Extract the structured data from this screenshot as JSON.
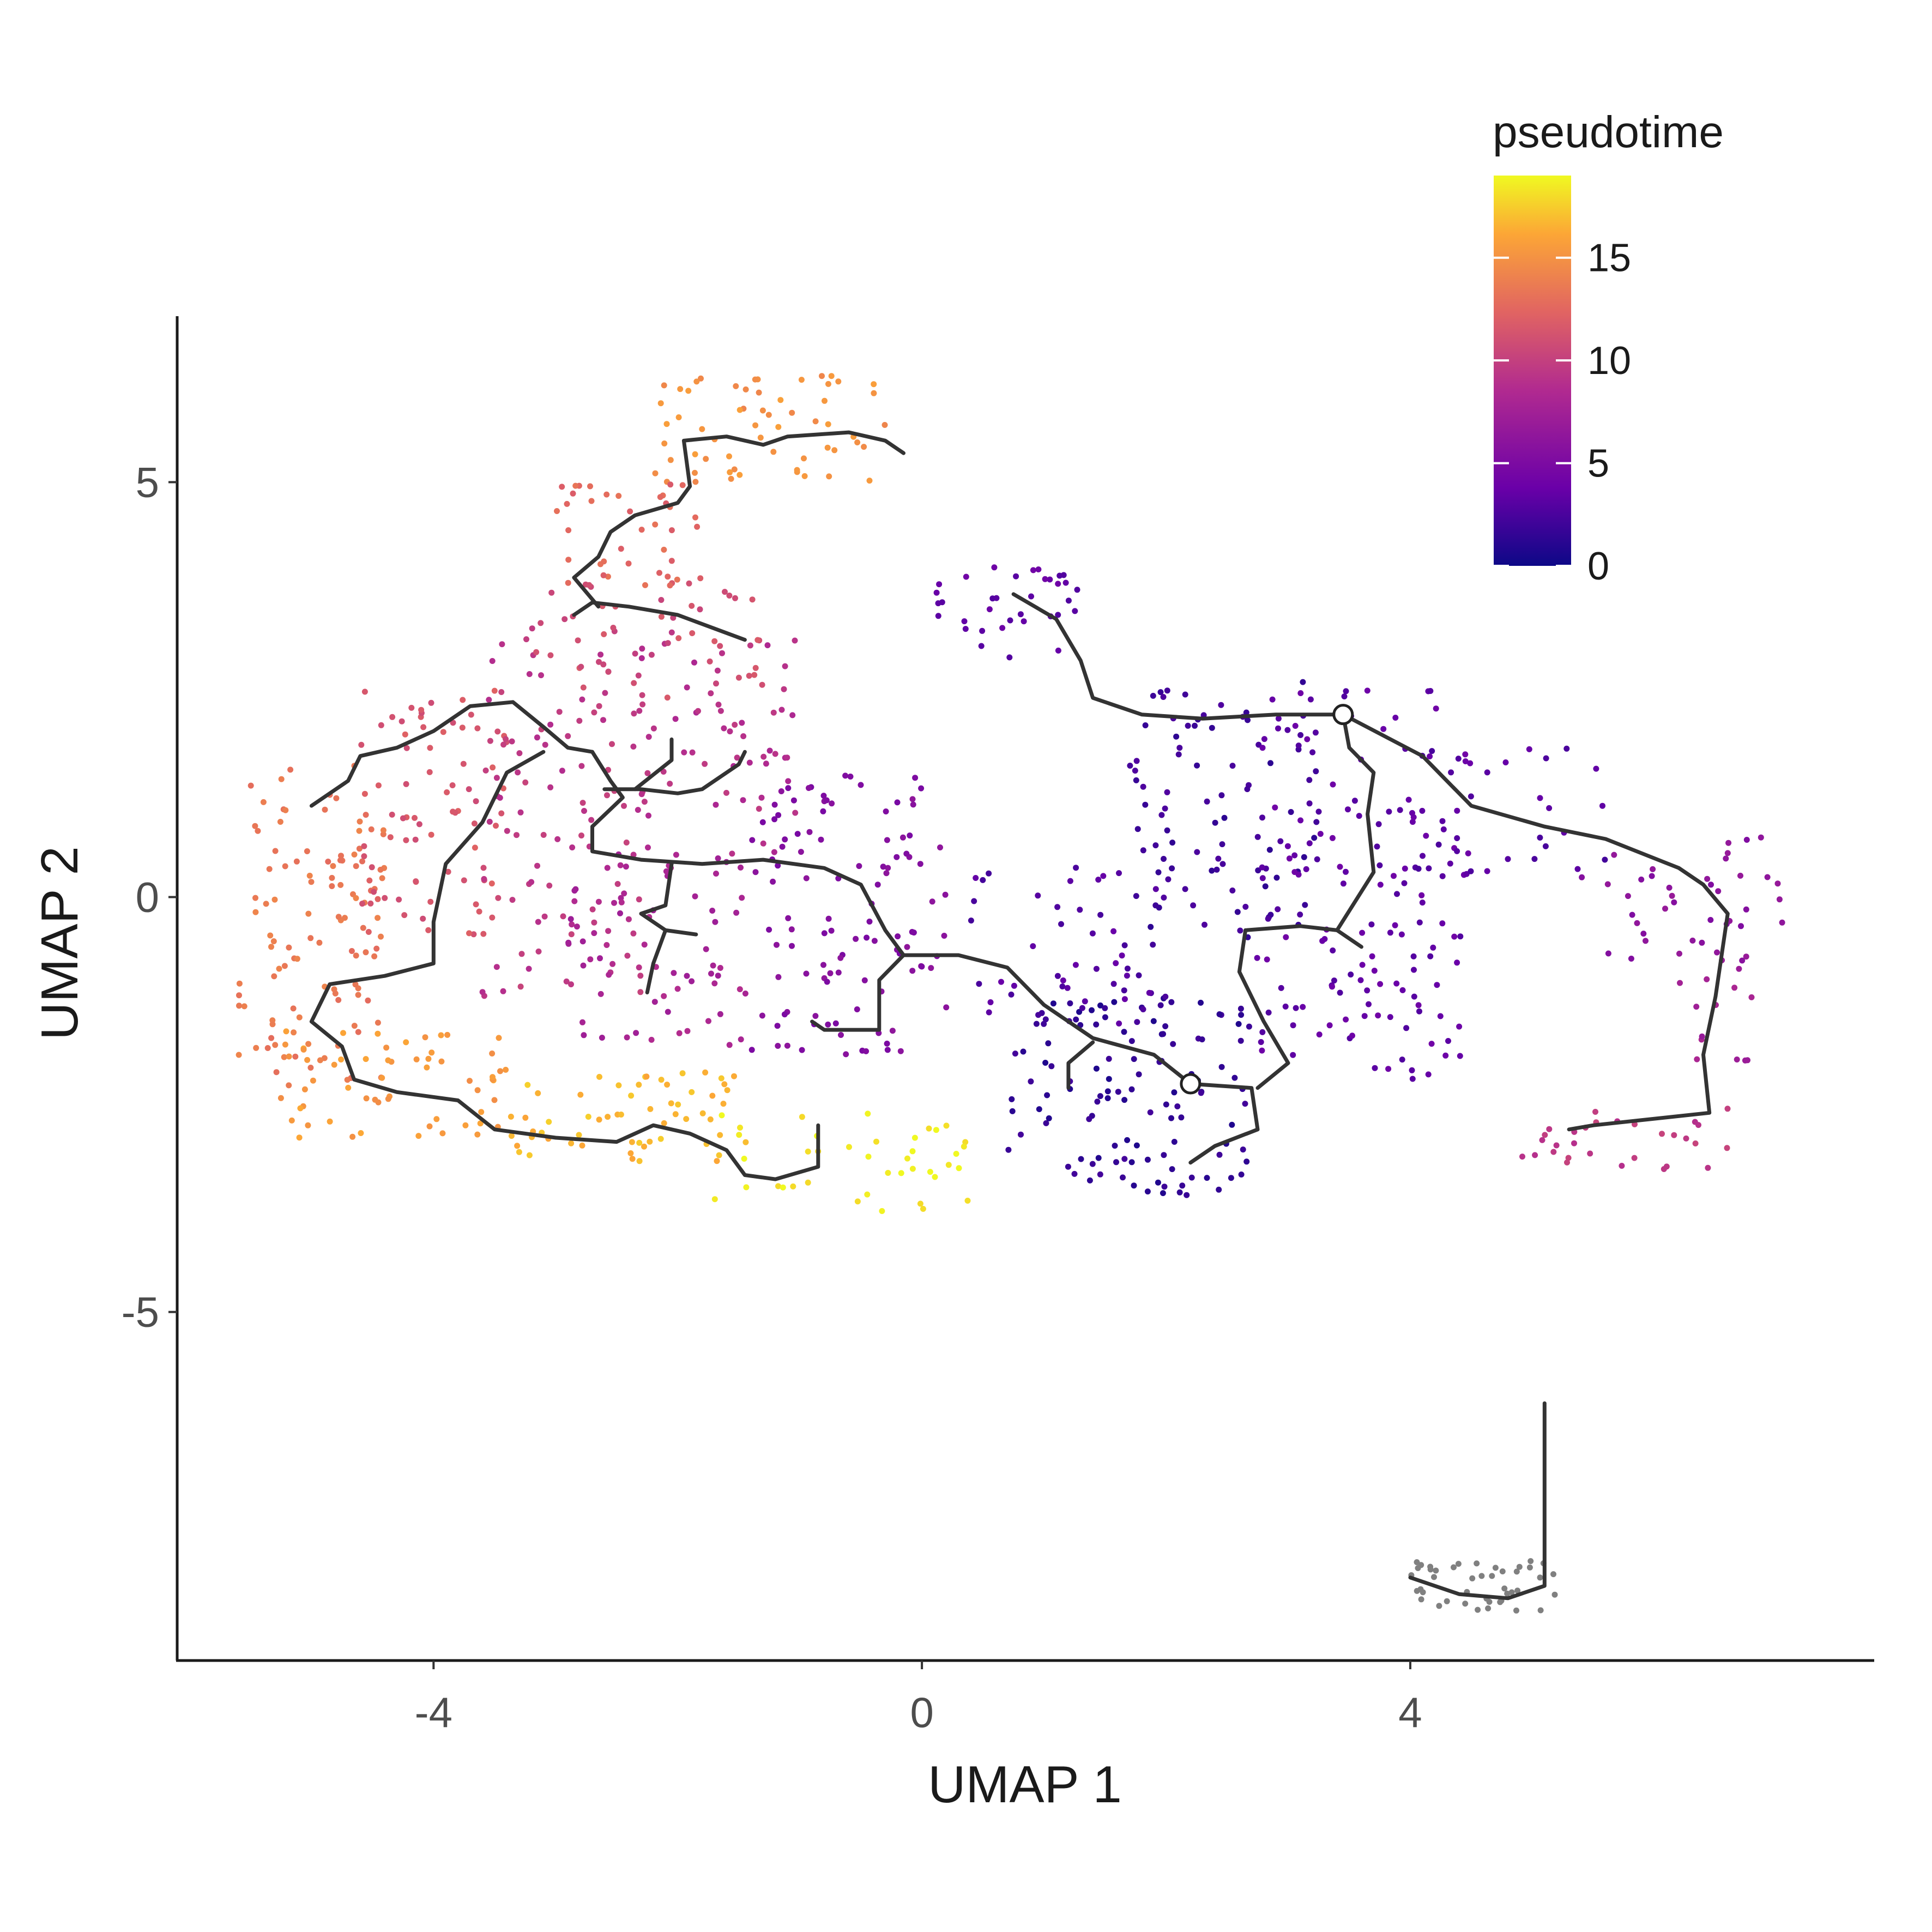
{
  "chart_data": {
    "type": "scatter",
    "xlabel": "UMAP 1",
    "ylabel": "UMAP 2",
    "xlim": [
      -6.1,
      7.8
    ],
    "ylim": [
      -9.2,
      7.0
    ],
    "xticks": [
      -4,
      0,
      4
    ],
    "xtick_labels": [
      "-4",
      "0",
      "4"
    ],
    "yticks": [
      5,
      0,
      -5
    ],
    "ytick_labels": [
      "5",
      "0",
      "-5"
    ],
    "grid": false,
    "legend": {
      "title": "pseudotime",
      "placement": "top-right",
      "type": "colorbar",
      "range": [
        0,
        19
      ],
      "ticks": [
        0,
        5,
        10,
        15
      ],
      "tick_labels": [
        "0",
        "5",
        "10",
        "15"
      ],
      "colors": [
        "#0d0887",
        "#6a00a8",
        "#b12a90",
        "#e16462",
        "#fca636",
        "#f0f921"
      ]
    },
    "na_color": "#808080",
    "root_nodes": [
      {
        "x": 3.45,
        "y": 2.2
      },
      {
        "x": 2.2,
        "y": -2.25
      }
    ],
    "trajectory": [
      [
        [
          -5.0,
          1.1
        ],
        [
          -4.7,
          1.4
        ],
        [
          -4.6,
          1.7
        ],
        [
          -4.3,
          1.8
        ],
        [
          -4.0,
          2.0
        ],
        [
          -3.7,
          2.3
        ],
        [
          -3.35,
          2.35
        ],
        [
          -3.1,
          2.05
        ],
        [
          -2.9,
          1.8
        ],
        [
          -2.7,
          1.75
        ]
      ],
      [
        [
          -3.1,
          1.75
        ],
        [
          -3.4,
          1.5
        ],
        [
          -3.6,
          0.9
        ],
        [
          -3.9,
          0.4
        ],
        [
          -4.0,
          -0.3
        ],
        [
          -4.0,
          -0.8
        ],
        [
          -4.4,
          -0.95
        ],
        [
          -4.85,
          -1.05
        ],
        [
          -5.0,
          -1.5
        ],
        [
          -4.75,
          -1.8
        ],
        [
          -4.65,
          -2.2
        ],
        [
          -4.3,
          -2.35
        ],
        [
          -3.8,
          -2.45
        ],
        [
          -3.5,
          -2.8
        ],
        [
          -3.0,
          -2.9
        ],
        [
          -2.5,
          -2.95
        ],
        [
          -2.2,
          -2.75
        ],
        [
          -1.9,
          -2.85
        ],
        [
          -1.6,
          -3.05
        ],
        [
          -1.45,
          -3.35
        ],
        [
          -1.2,
          -3.4
        ],
        [
          -0.85,
          -3.25
        ],
        [
          -0.85,
          -2.75
        ]
      ],
      [
        [
          -2.7,
          1.75
        ],
        [
          -2.55,
          1.4
        ],
        [
          -2.45,
          1.2
        ],
        [
          -2.7,
          0.85
        ],
        [
          -2.7,
          0.55
        ],
        [
          -2.3,
          0.45
        ],
        [
          -1.8,
          0.4
        ],
        [
          -1.3,
          0.45
        ],
        [
          -0.8,
          0.35
        ],
        [
          -0.5,
          0.15
        ],
        [
          -0.3,
          -0.4
        ],
        [
          -0.15,
          -0.7
        ],
        [
          0.3,
          -0.7
        ],
        [
          0.7,
          -0.85
        ],
        [
          1.0,
          -1.3
        ],
        [
          1.4,
          -1.7
        ],
        [
          1.9,
          -1.9
        ],
        [
          2.2,
          -2.25
        ],
        [
          2.7,
          -2.3
        ],
        [
          2.75,
          -2.8
        ],
        [
          2.4,
          -3.0
        ],
        [
          2.2,
          -3.2
        ]
      ],
      [
        [
          -0.15,
          -0.7
        ],
        [
          -0.35,
          -1.0
        ],
        [
          -0.35,
          -1.6
        ],
        [
          -0.8,
          -1.6
        ],
        [
          -0.9,
          -1.5
        ]
      ],
      [
        [
          1.4,
          -1.75
        ],
        [
          1.2,
          -2.0
        ],
        [
          1.2,
          -2.3
        ]
      ],
      [
        [
          2.75,
          -2.3
        ],
        [
          3.0,
          -2.0
        ],
        [
          2.8,
          -1.5
        ],
        [
          2.6,
          -0.9
        ],
        [
          2.65,
          -0.4
        ],
        [
          3.1,
          -0.35
        ],
        [
          3.4,
          -0.4
        ],
        [
          3.6,
          -0.6
        ]
      ],
      [
        [
          3.4,
          -0.4
        ],
        [
          3.7,
          0.3
        ],
        [
          3.65,
          1.0
        ],
        [
          3.7,
          1.5
        ],
        [
          3.5,
          1.8
        ],
        [
          3.45,
          2.2
        ]
      ],
      [
        [
          3.45,
          2.2
        ],
        [
          2.9,
          2.2
        ],
        [
          2.3,
          2.15
        ],
        [
          1.8,
          2.2
        ],
        [
          1.4,
          2.4
        ],
        [
          1.3,
          2.85
        ],
        [
          1.1,
          3.35
        ],
        [
          0.75,
          3.65
        ]
      ],
      [
        [
          3.45,
          2.2
        ],
        [
          4.1,
          1.7
        ],
        [
          4.5,
          1.1
        ],
        [
          5.1,
          0.85
        ],
        [
          5.6,
          0.7
        ],
        [
          6.2,
          0.35
        ],
        [
          6.4,
          0.15
        ],
        [
          6.6,
          -0.2
        ],
        [
          6.5,
          -1.2
        ],
        [
          6.4,
          -1.9
        ],
        [
          6.45,
          -2.6
        ],
        [
          5.5,
          -2.75
        ],
        [
          5.3,
          -2.8
        ]
      ],
      [
        [
          -2.85,
          3.4
        ],
        [
          -2.7,
          3.55
        ],
        [
          -2.4,
          3.5
        ],
        [
          -2.0,
          3.4
        ],
        [
          -1.45,
          3.1
        ]
      ],
      [
        [
          -2.65,
          3.5
        ],
        [
          -2.85,
          3.85
        ],
        [
          -2.65,
          4.1
        ],
        [
          -2.55,
          4.4
        ],
        [
          -2.35,
          4.6
        ],
        [
          -2.0,
          4.75
        ],
        [
          -1.9,
          4.95
        ],
        [
          -1.95,
          5.5
        ],
        [
          -1.6,
          5.55
        ],
        [
          -1.3,
          5.45
        ],
        [
          -1.1,
          5.55
        ],
        [
          -0.6,
          5.6
        ],
        [
          -0.3,
          5.5
        ],
        [
          -0.15,
          5.35
        ]
      ],
      [
        [
          -2.6,
          1.3
        ],
        [
          -2.3,
          1.3
        ],
        [
          -2.0,
          1.25
        ],
        [
          -1.8,
          1.3
        ],
        [
          -1.5,
          1.6
        ],
        [
          -1.45,
          1.75
        ]
      ],
      [
        [
          -2.35,
          1.3
        ],
        [
          -2.05,
          1.65
        ],
        [
          -2.05,
          1.9
        ]
      ],
      [
        [
          -2.05,
          0.4
        ],
        [
          -2.1,
          -0.1
        ],
        [
          -2.3,
          -0.2
        ],
        [
          -2.1,
          -0.4
        ],
        [
          -2.2,
          -0.8
        ],
        [
          -2.25,
          -1.15
        ]
      ],
      [
        [
          -2.1,
          -0.4
        ],
        [
          -1.85,
          -0.45
        ]
      ],
      [
        [
          5.1,
          -6.1
        ],
        [
          5.1,
          -8.3
        ],
        [
          4.8,
          -8.45
        ],
        [
          4.4,
          -8.4
        ],
        [
          4.0,
          -8.2
        ]
      ]
    ],
    "clusters": [
      {
        "x_range": [
          -5.6,
          -4.4
        ],
        "y_range": [
          -2.3,
          1.6
        ],
        "pseudotime": 13.5,
        "count": 110
      },
      {
        "x_range": [
          -4.6,
          -3.4
        ],
        "y_range": [
          -0.5,
          2.6
        ],
        "pseudotime": 11.5,
        "count": 80
      },
      {
        "x_range": [
          -3.6,
          -2.2
        ],
        "y_range": [
          -1.2,
          3.4
        ],
        "pseudotime": 9.5,
        "count": 100
      },
      {
        "x_range": [
          -2.4,
          -1.0
        ],
        "y_range": [
          0.5,
          3.2
        ],
        "pseudotime": 9.0,
        "count": 60
      },
      {
        "x_range": [
          -2.9,
          -1.4
        ],
        "y_range": [
          -1.8,
          0.6
        ],
        "pseudotime": 8.0,
        "count": 70
      },
      {
        "x_range": [
          -1.4,
          0.2
        ],
        "y_range": [
          -1.9,
          1.5
        ],
        "pseudotime": 5.5,
        "count": 110
      },
      {
        "x_range": [
          -5.3,
          -3.4
        ],
        "y_range": [
          -2.9,
          -1.6
        ],
        "pseudotime": 15.5,
        "count": 60
      },
      {
        "x_range": [
          -3.4,
          -1.4
        ],
        "y_range": [
          -3.2,
          -2.1
        ],
        "pseudotime": 16.8,
        "count": 60
      },
      {
        "x_range": [
          -1.7,
          0.6
        ],
        "y_range": [
          -3.8,
          -2.6
        ],
        "pseudotime": 18.6,
        "count": 40
      },
      {
        "x_range": [
          -2.2,
          -0.3
        ],
        "y_range": [
          5.0,
          6.3
        ],
        "pseudotime": 15.0,
        "count": 60
      },
      {
        "x_range": [
          -3.0,
          -1.8
        ],
        "y_range": [
          3.7,
          5.0
        ],
        "pseudotime": 12.5,
        "count": 40
      },
      {
        "x_range": [
          -3.3,
          -1.3
        ],
        "y_range": [
          2.4,
          3.8
        ],
        "pseudotime": 11.0,
        "count": 45
      },
      {
        "x_range": [
          0.0,
          1.3
        ],
        "y_range": [
          2.8,
          4.0
        ],
        "pseudotime": 3.5,
        "count": 35
      },
      {
        "x_range": [
          0.7,
          2.7
        ],
        "y_range": [
          -3.6,
          -1.2
        ],
        "pseudotime": 1.5,
        "count": 120
      },
      {
        "x_range": [
          0.4,
          2.0
        ],
        "y_range": [
          -1.6,
          0.4
        ],
        "pseudotime": 3.0,
        "count": 50
      },
      {
        "x_range": [
          1.7,
          3.3
        ],
        "y_range": [
          -0.5,
          2.6
        ],
        "pseudotime": 2.0,
        "count": 90
      },
      {
        "x_range": [
          2.7,
          4.5
        ],
        "y_range": [
          -2.2,
          2.5
        ],
        "pseudotime": 3.5,
        "count": 150
      },
      {
        "x_range": [
          4.0,
          5.6
        ],
        "y_range": [
          0.3,
          1.8
        ],
        "pseudotime": 3.0,
        "count": 30
      },
      {
        "x_range": [
          5.4,
          7.1
        ],
        "y_range": [
          -0.8,
          0.8
        ],
        "pseudotime": 6.0,
        "count": 40
      },
      {
        "x_range": [
          6.2,
          6.8
        ],
        "y_range": [
          -2.0,
          -0.6
        ],
        "pseudotime": 7.5,
        "count": 15
      },
      {
        "x_range": [
          4.9,
          6.6
        ],
        "y_range": [
          -3.3,
          -2.5
        ],
        "pseudotime": 9.5,
        "count": 30
      },
      {
        "x_range": [
          4.0,
          5.2
        ],
        "y_range": [
          -8.6,
          -8.0
        ],
        "pseudotime": null,
        "count": 45
      }
    ]
  }
}
